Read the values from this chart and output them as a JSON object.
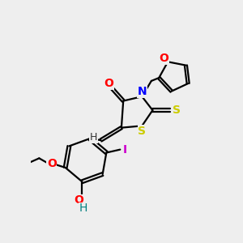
{
  "background_color": "#eeeeee",
  "bond_color": "#000000",
  "atom_colors": {
    "O": "#ff0000",
    "N": "#0000ff",
    "S": "#cccc00",
    "I": "#cc00cc",
    "H_label": "#008080"
  },
  "figsize": [
    3.0,
    3.0
  ],
  "dpi": 100
}
